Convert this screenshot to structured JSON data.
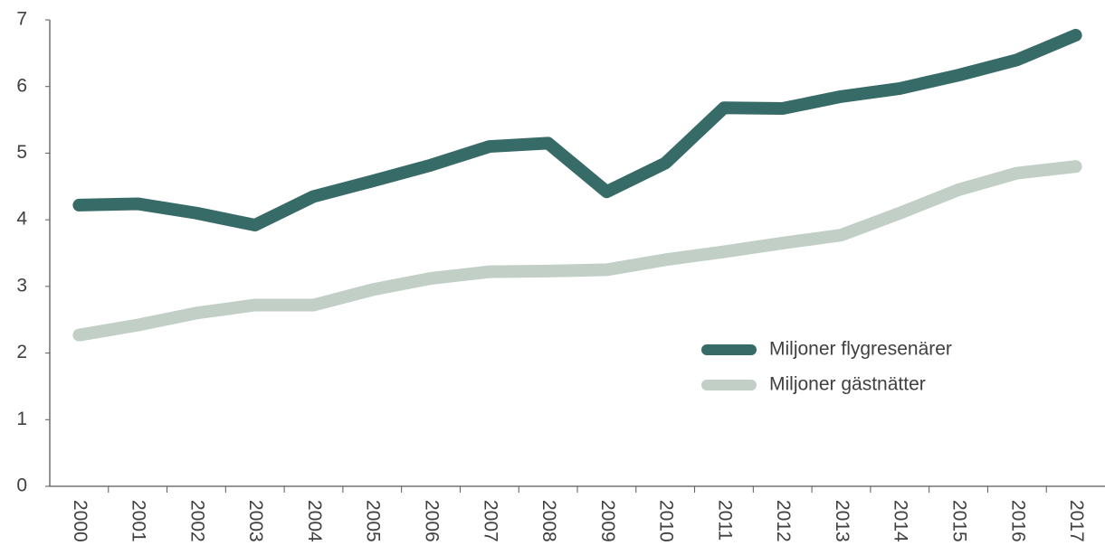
{
  "chart_data": {
    "type": "line",
    "categories": [
      "2000",
      "2001",
      "2002",
      "2003",
      "2004",
      "2005",
      "2006",
      "2007",
      "2008",
      "2009",
      "2010",
      "2011",
      "2012",
      "2013",
      "2014",
      "2015",
      "2016",
      "2017"
    ],
    "series": [
      {
        "name": "Miljoner flygresenärer",
        "color": "#376b67",
        "values": [
          4.22,
          4.24,
          4.1,
          3.92,
          4.35,
          4.58,
          4.82,
          5.1,
          5.15,
          4.42,
          4.85,
          5.68,
          5.67,
          5.85,
          5.97,
          6.17,
          6.4,
          6.77
        ]
      },
      {
        "name": "Miljoner gästnätter",
        "color": "#c1cfc7",
        "values": [
          2.27,
          2.42,
          2.6,
          2.72,
          2.72,
          2.95,
          3.12,
          3.22,
          3.23,
          3.25,
          3.4,
          3.52,
          3.65,
          3.77,
          4.1,
          4.45,
          4.7,
          4.8
        ]
      }
    ],
    "ylim": [
      0,
      7
    ],
    "yticks": [
      0,
      1,
      2,
      3,
      4,
      5,
      6,
      7
    ],
    "grid": false
  }
}
